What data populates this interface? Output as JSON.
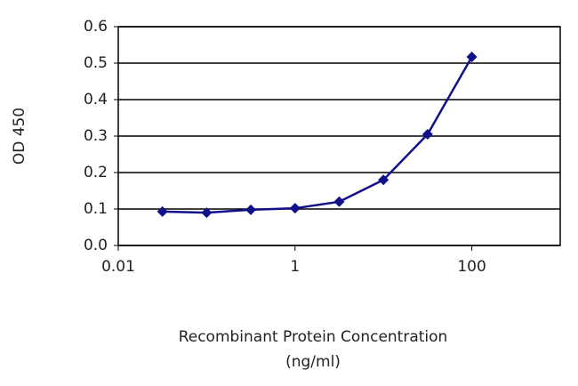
{
  "chart_data": {
    "type": "line",
    "y_label": "OD 450",
    "x_label": [
      "Recombinant Protein Concentration",
      "(ng/ml)"
    ],
    "x": [
      0.0316,
      0.1,
      0.316,
      1,
      3.16,
      10,
      31.6,
      100
    ],
    "series": [
      {
        "color": "#10108a",
        "values": [
          0.093,
          0.09,
          0.098,
          0.102,
          0.12,
          0.18,
          0.305,
          0.517
        ]
      }
    ],
    "xlim": [
      0.01,
      1000
    ],
    "xscale": "log",
    "xticks": [
      0.01,
      1,
      100
    ],
    "ylim": [
      0,
      0.6
    ],
    "yticks": [
      {
        "value": 0,
        "label": "0.0"
      },
      0.1,
      0.2,
      0.3,
      0.4,
      0.5,
      0.6
    ],
    "grid": true
  }
}
